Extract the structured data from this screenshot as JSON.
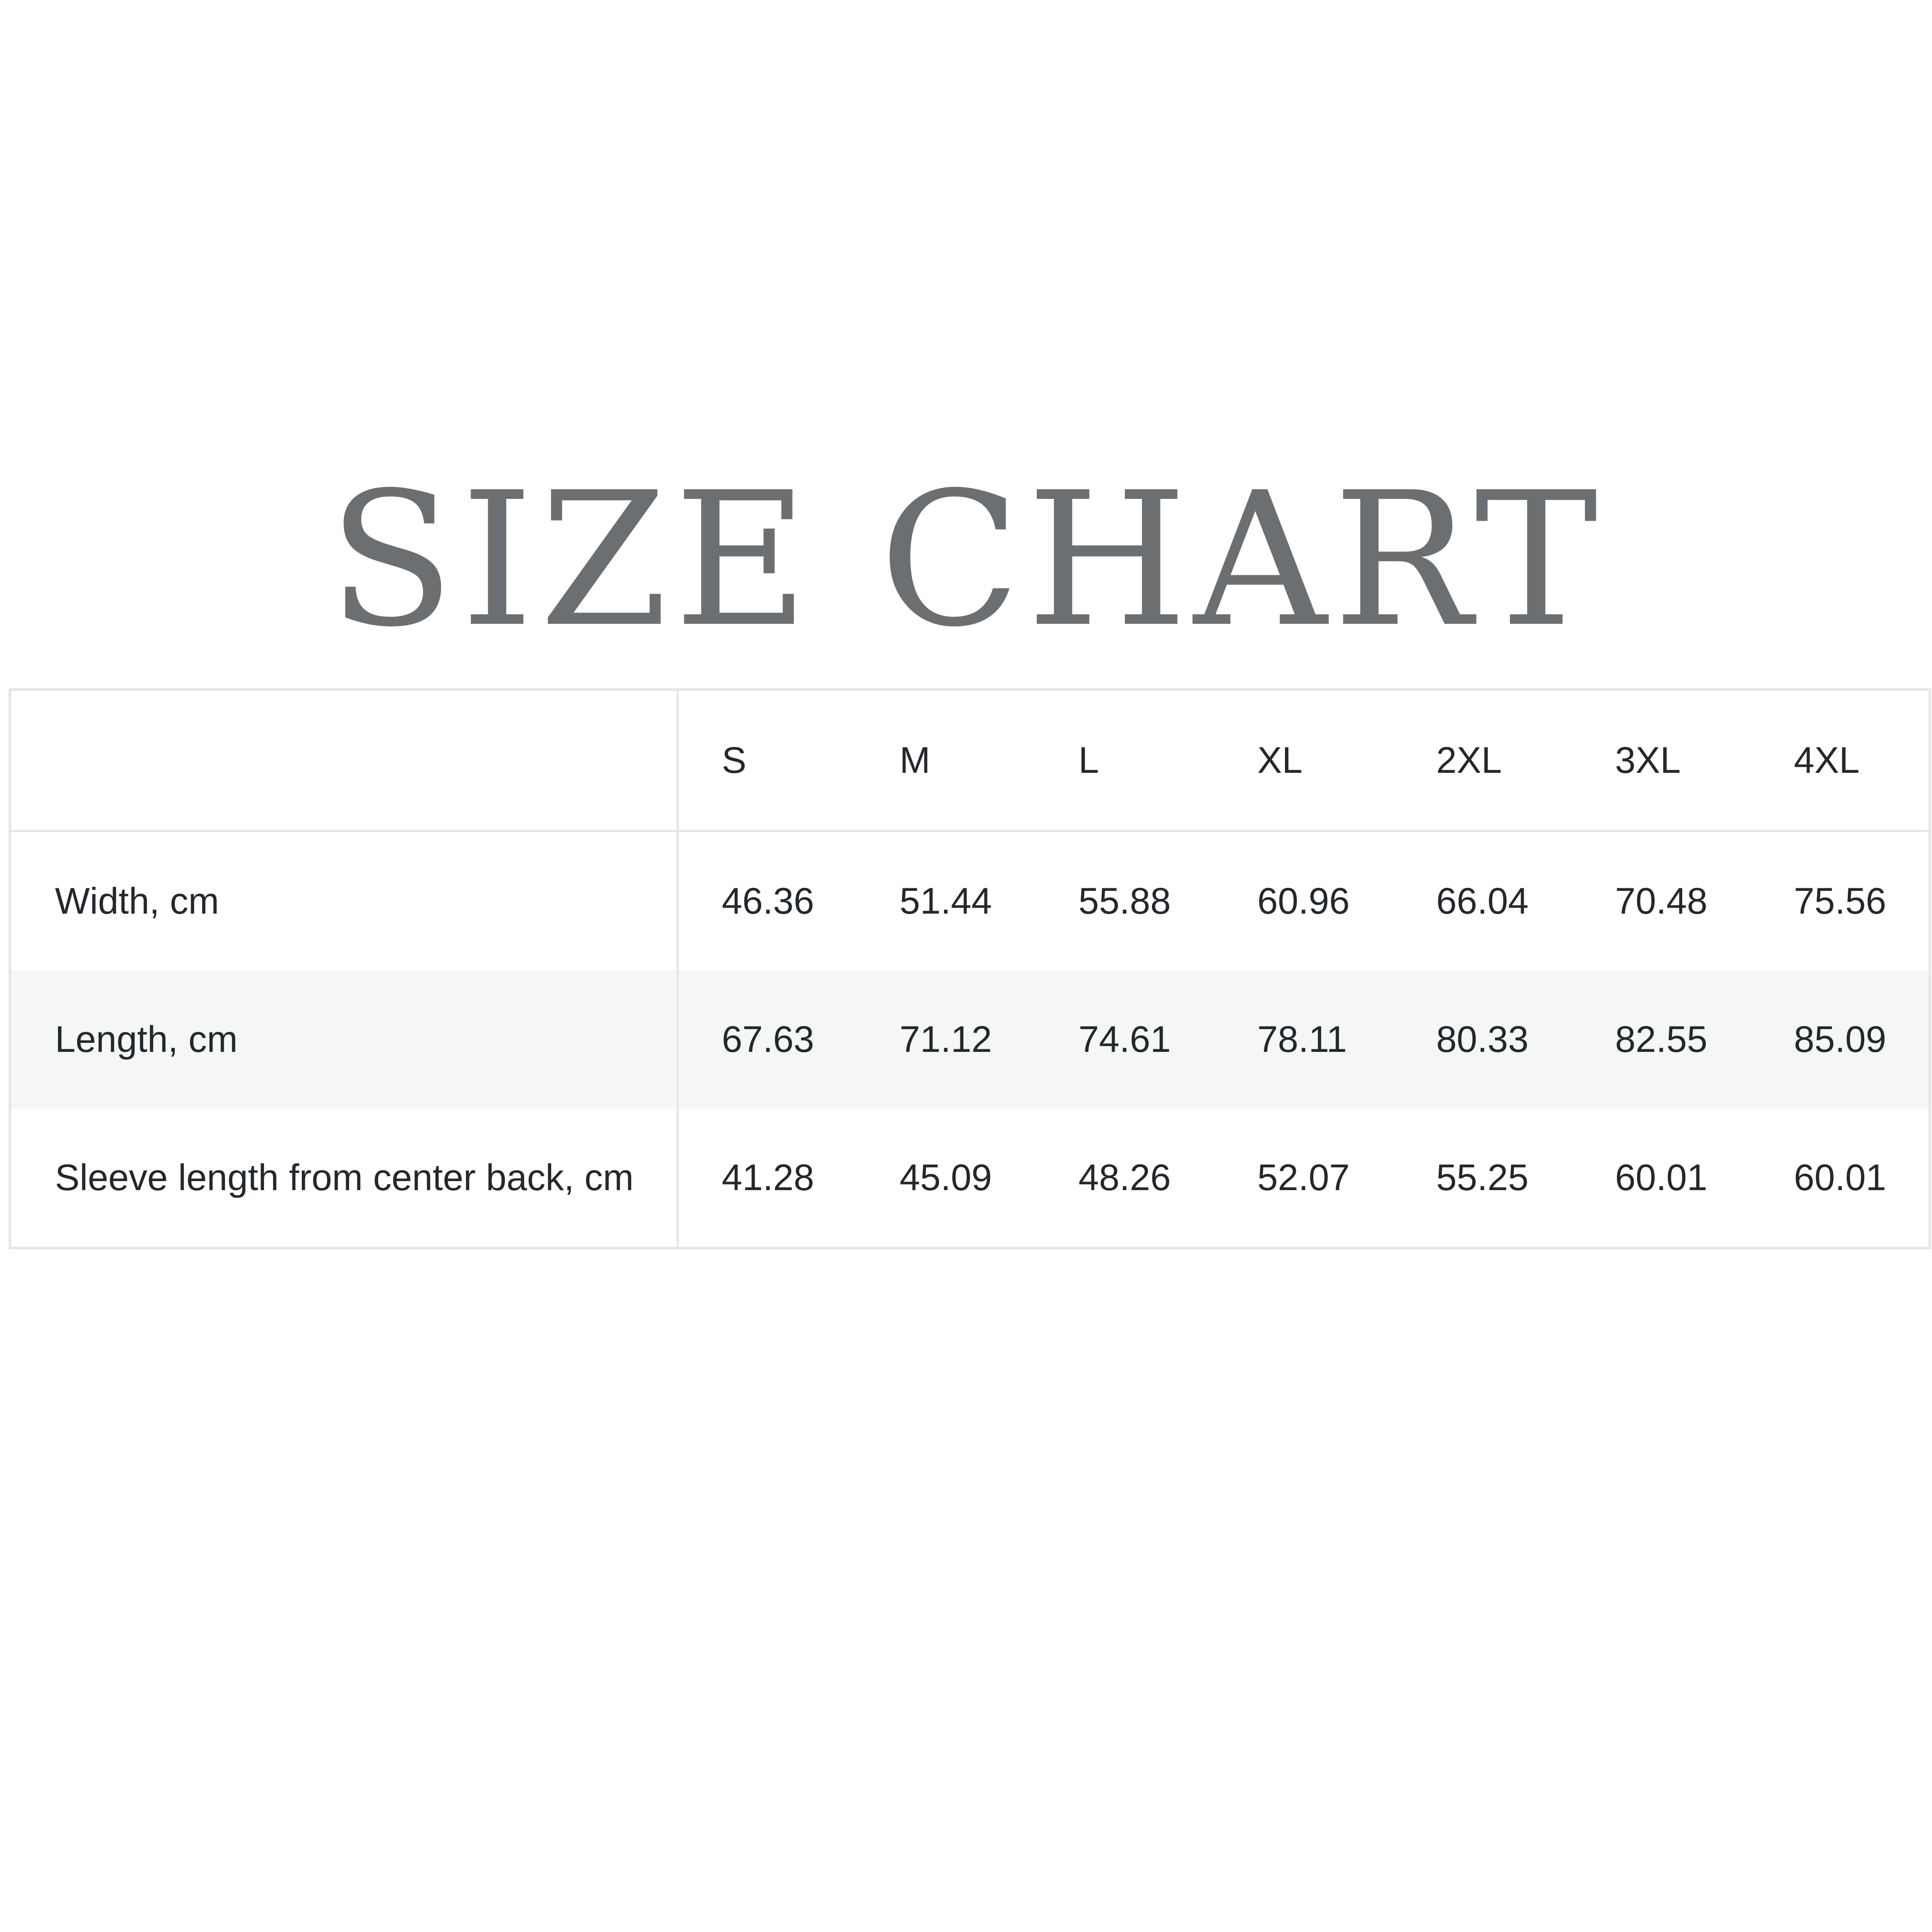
{
  "title": "SIZE CHART",
  "table": {
    "corner": "",
    "sizes": [
      "S",
      "M",
      "L",
      "XL",
      "2XL",
      "3XL",
      "4XL"
    ],
    "rows": [
      {
        "label": "Width, cm",
        "values": [
          "46.36",
          "51.44",
          "55.88",
          "60.96",
          "66.04",
          "70.48",
          "75.56"
        ]
      },
      {
        "label": "Length, cm",
        "values": [
          "67.63",
          "71.12",
          "74.61",
          "78.11",
          "80.33",
          "82.55",
          "85.09"
        ]
      },
      {
        "label": "Sleeve length from center back, cm",
        "values": [
          "41.28",
          "45.09",
          "48.26",
          "52.07",
          "55.25",
          "60.01",
          "60.01"
        ]
      }
    ]
  },
  "colors": {
    "title": "#6c6f72",
    "text": "#23282d",
    "border": "#e4e6e8",
    "stripe": "#f5f6f6"
  }
}
